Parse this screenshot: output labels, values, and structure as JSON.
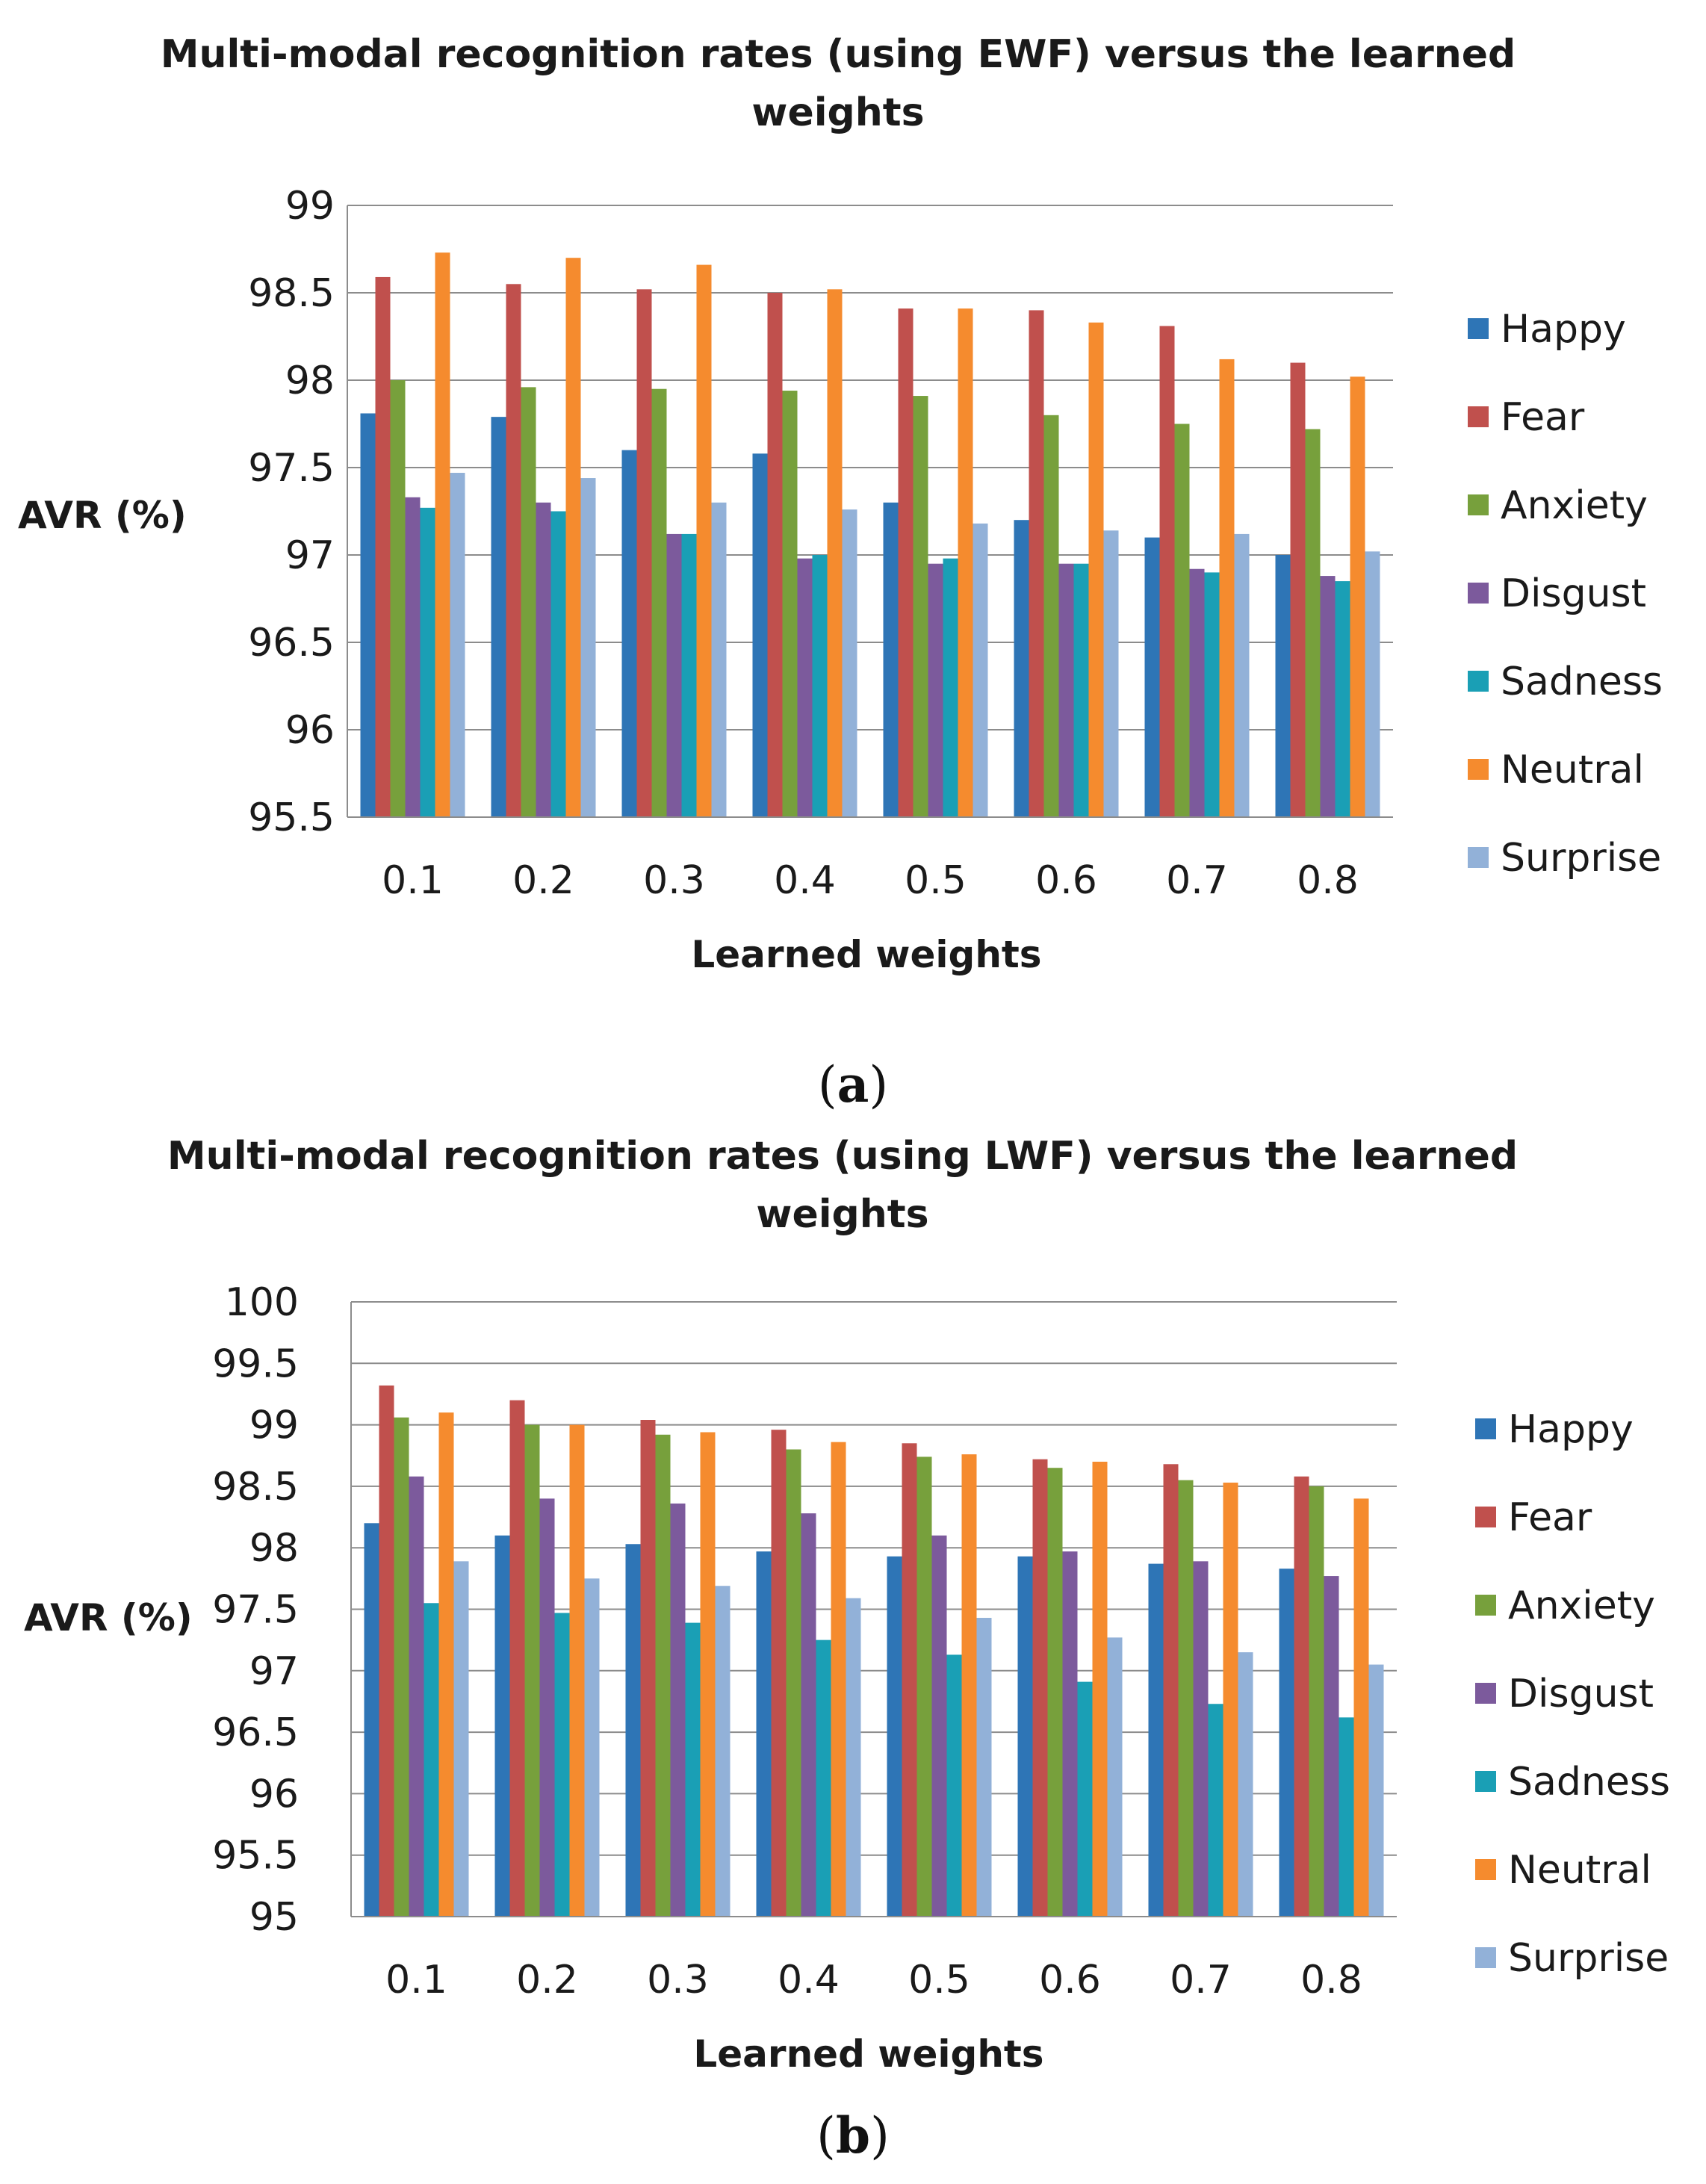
{
  "chart_data": [
    {
      "type": "bar",
      "title_line1": "Multi-modal recognition rates (using EWF) versus the learned",
      "title_line2": "weights",
      "xlabel": "Learned weights",
      "ylabel": "AVR (%)",
      "ylim": [
        95.5,
        99
      ],
      "yticks": [
        "95.5",
        "96",
        "96.5",
        "97",
        "97.5",
        "98",
        "98.5",
        "99"
      ],
      "ytick_values": [
        95.5,
        96,
        96.5,
        97,
        97.5,
        98,
        98.5,
        99
      ],
      "categories": [
        "0.1",
        "0.2",
        "0.3",
        "0.4",
        "0.5",
        "0.6",
        "0.7",
        "0.8"
      ],
      "grid": true,
      "legend": "right",
      "caption": {
        "open": "(",
        "letter": "a",
        "close": ")"
      },
      "series": [
        {
          "name": "Happy",
          "color": "#2e75b6",
          "values": [
            97.81,
            97.79,
            97.6,
            97.58,
            97.3,
            97.2,
            97.1,
            97.0
          ]
        },
        {
          "name": "Fear",
          "color": "#c0504d",
          "values": [
            98.59,
            98.55,
            98.52,
            98.5,
            98.41,
            98.4,
            98.31,
            98.1
          ]
        },
        {
          "name": "Anxiety",
          "color": "#77a03c",
          "values": [
            98.0,
            97.96,
            97.95,
            97.94,
            97.91,
            97.8,
            97.75,
            97.72
          ]
        },
        {
          "name": "Disgust",
          "color": "#7c5a9c",
          "values": [
            97.33,
            97.3,
            97.12,
            96.98,
            96.95,
            96.95,
            96.92,
            96.88
          ]
        },
        {
          "name": "Sadness",
          "color": "#1a9fb5",
          "values": [
            97.27,
            97.25,
            97.12,
            97.0,
            96.98,
            96.95,
            96.9,
            96.85
          ]
        },
        {
          "name": "Neutral",
          "color": "#f58b2e",
          "values": [
            98.73,
            98.7,
            98.66,
            98.52,
            98.41,
            98.33,
            98.12,
            98.02
          ]
        },
        {
          "name": "Surprise",
          "color": "#92b1d8",
          "values": [
            97.47,
            97.44,
            97.3,
            97.26,
            97.18,
            97.14,
            97.12,
            97.02
          ]
        }
      ]
    },
    {
      "type": "bar",
      "title_line1": "Multi-modal recognition rates (using LWF) versus the learned",
      "title_line2": "weights",
      "xlabel": "Learned weights",
      "ylabel": "AVR (%)",
      "ylim": [
        95,
        100
      ],
      "yticks": [
        "95",
        "95.5",
        "96",
        "96.5",
        "97",
        "97.5",
        "98",
        "98.5",
        "99",
        "99.5",
        "100"
      ],
      "ytick_values": [
        95,
        95.5,
        96,
        96.5,
        97,
        97.5,
        98,
        98.5,
        99,
        99.5,
        100
      ],
      "categories": [
        "0.1",
        "0.2",
        "0.3",
        "0.4",
        "0.5",
        "0.6",
        "0.7",
        "0.8"
      ],
      "grid": true,
      "legend": "right",
      "caption": {
        "open": "(",
        "letter": "b",
        "close": ")"
      },
      "series": [
        {
          "name": "Happy",
          "color": "#2e75b6",
          "values": [
            98.2,
            98.1,
            98.03,
            97.97,
            97.93,
            97.93,
            97.87,
            97.83
          ]
        },
        {
          "name": "Fear",
          "color": "#c0504d",
          "values": [
            99.32,
            99.2,
            99.04,
            98.96,
            98.85,
            98.72,
            98.68,
            98.58
          ]
        },
        {
          "name": "Anxiety",
          "color": "#77a03c",
          "values": [
            99.06,
            99.0,
            98.92,
            98.8,
            98.74,
            98.65,
            98.55,
            98.5
          ]
        },
        {
          "name": "Disgust",
          "color": "#7c5a9c",
          "values": [
            98.58,
            98.4,
            98.36,
            98.28,
            98.1,
            97.97,
            97.89,
            97.77
          ]
        },
        {
          "name": "Sadness",
          "color": "#1a9fb5",
          "values": [
            97.55,
            97.47,
            97.39,
            97.25,
            97.13,
            96.91,
            96.73,
            96.62
          ]
        },
        {
          "name": "Neutral",
          "color": "#f58b2e",
          "values": [
            99.1,
            99.0,
            98.94,
            98.86,
            98.76,
            98.7,
            98.53,
            98.4
          ]
        },
        {
          "name": "Surprise",
          "color": "#92b1d8",
          "values": [
            97.89,
            97.75,
            97.69,
            97.59,
            97.43,
            97.27,
            97.15,
            97.05
          ]
        }
      ]
    }
  ]
}
